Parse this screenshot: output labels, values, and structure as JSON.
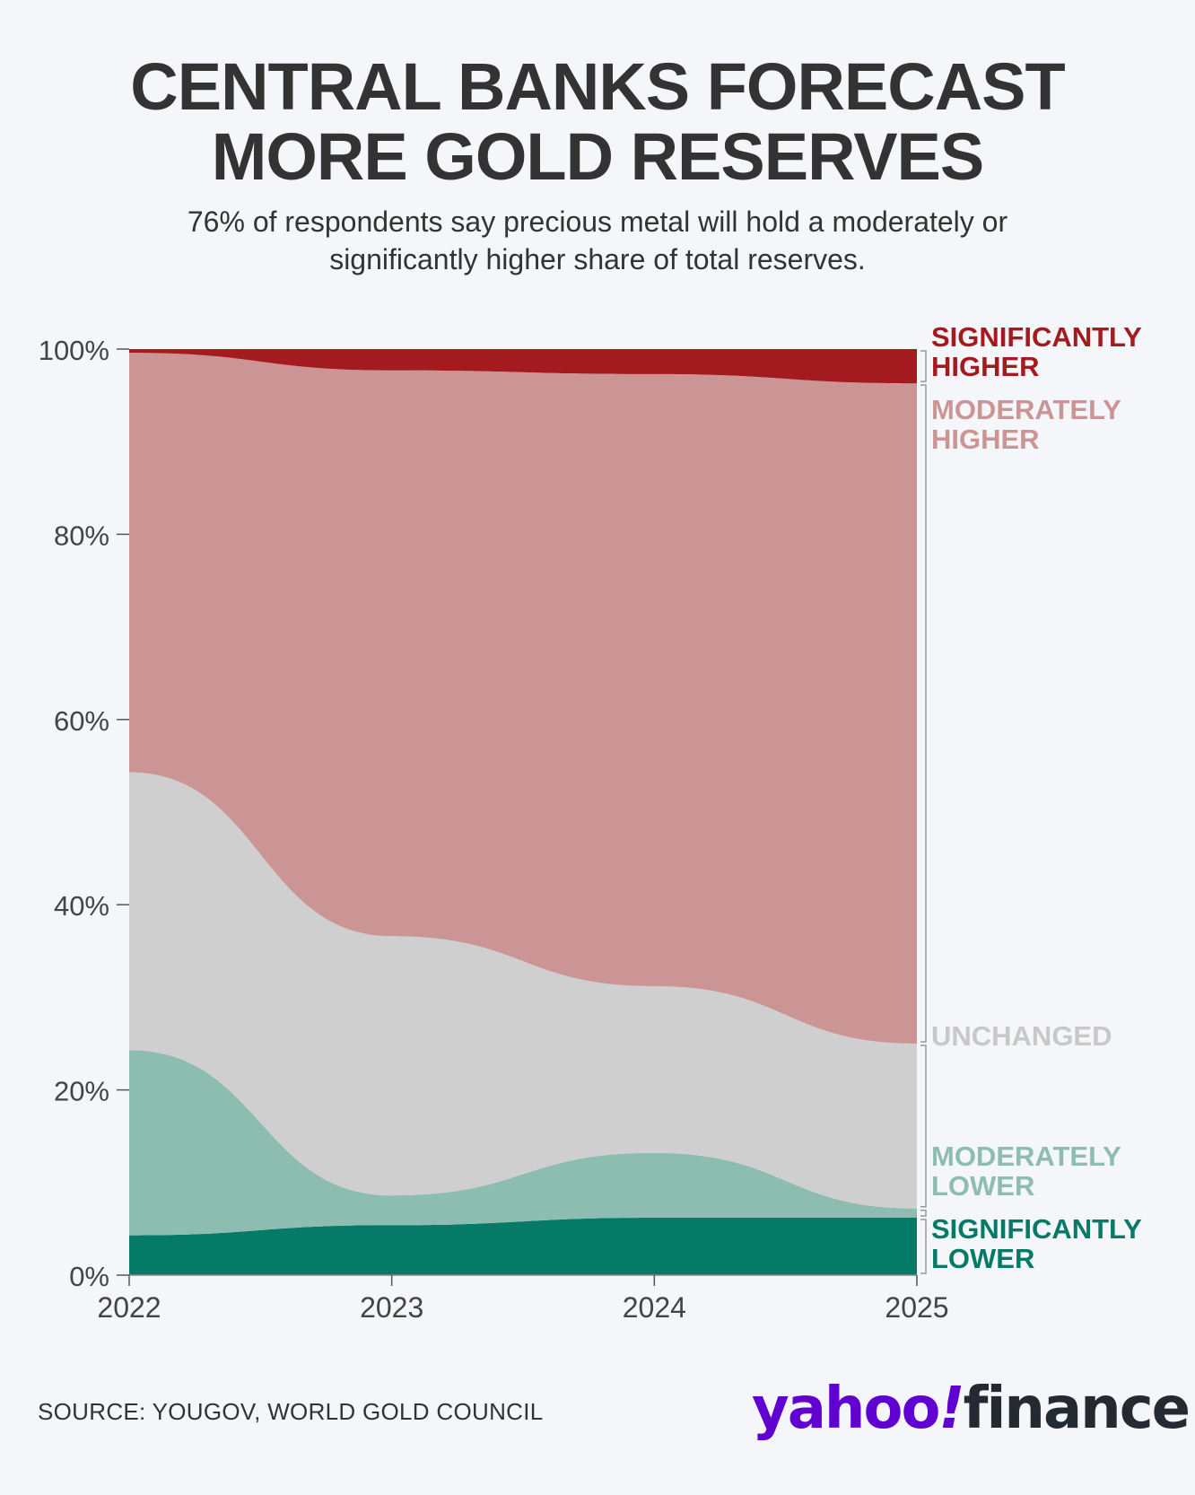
{
  "header": {
    "title_line1": "CENTRAL BANKS FORECAST",
    "title_line2": "MORE GOLD RESERVES",
    "subtitle_line1": "76% of respondents say precious metal will hold a moderately or",
    "subtitle_line2": "significantly higher share of total reserves."
  },
  "chart_data": {
    "type": "area",
    "stacked": true,
    "x": [
      "2022",
      "2023",
      "2024",
      "2025"
    ],
    "ylim": [
      0,
      100
    ],
    "yticks": [
      "0%",
      "20%",
      "40%",
      "60%",
      "80%",
      "100%"
    ],
    "series": [
      {
        "name": "Significantly lower",
        "label_line1": "SIGNIFICANTLY",
        "label_line2": "LOWER",
        "color": "#047a67",
        "label_color": "#047a67",
        "values": [
          4.3,
          5.4,
          6.2,
          6.2
        ]
      },
      {
        "name": "Moderately lower",
        "label_line1": "MODERATELY",
        "label_line2": "LOWER",
        "color": "#8dbcb1",
        "label_color": "#8dbcb1",
        "values": [
          20.0,
          3.2,
          7.0,
          1.0
        ]
      },
      {
        "name": "Unchanged",
        "label_line1": "UNCHANGED",
        "label_line2": "",
        "color": "#cfcfcf",
        "label_color": "#c8c8c8",
        "values": [
          30.0,
          28.0,
          18.0,
          17.8
        ]
      },
      {
        "name": "Moderately higher",
        "label_line1": "MODERATELY",
        "label_line2": "HIGHER",
        "color": "#cc9595",
        "label_color": "#cc9595",
        "values": [
          45.3,
          61.1,
          66.1,
          71.3
        ]
      },
      {
        "name": "Significantly higher",
        "label_line1": "SIGNIFICANTLY",
        "label_line2": "HIGHER",
        "color": "#a31b1f",
        "label_color": "#a31b1f",
        "values": [
          0.4,
          2.3,
          2.7,
          3.7
        ]
      }
    ]
  },
  "footer": {
    "source": "SOURCE: YOUGOV, WORLD GOLD COUNCIL",
    "logo_yahoo": "yahoo",
    "logo_bang": "!",
    "logo_finance": "finance"
  }
}
